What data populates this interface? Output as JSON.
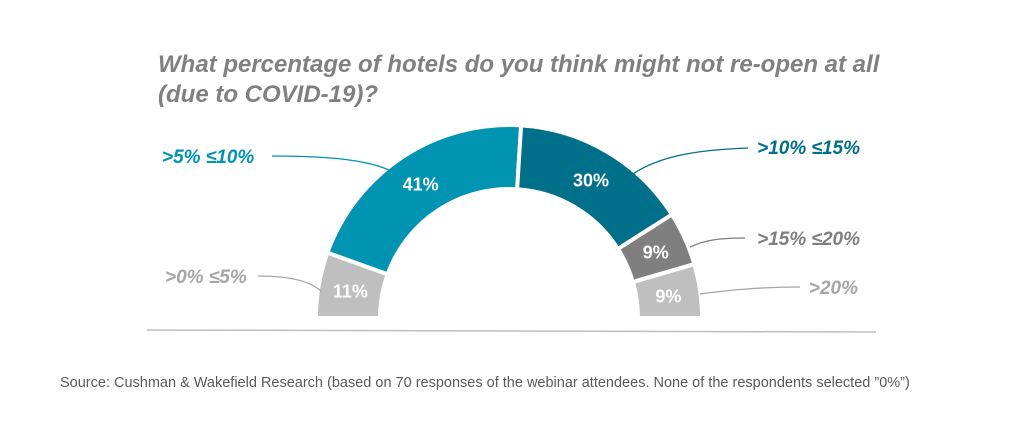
{
  "chart_data": {
    "type": "pie",
    "variant": "semi-donut",
    "title": "What percentage of hotels do you think might not re-open at all (due to COVID-19)?",
    "categories": [
      ">0% ≤5%",
      ">5% ≤10%",
      ">10% ≤15%",
      ">15% ≤20%",
      ">20%"
    ],
    "values": [
      11,
      41,
      30,
      9,
      9
    ],
    "data_labels": [
      "11%",
      "41%",
      "30%",
      "9%",
      "9%"
    ],
    "colors": [
      "#bfbfbf",
      "#0093b2",
      "#006f8a",
      "#7f7f7f",
      "#bfbfbf"
    ],
    "label_colors": [
      "#a6a6a6",
      "#0093b2",
      "#006f8a",
      "#7f7f7f",
      "#a6a6a6"
    ],
    "legend": "none (category labels with leader lines)"
  },
  "source": "Source: Cushman & Wakefield Research (based on 70 responses of the webinar attendees. None of the respondents selected ”0%”)"
}
